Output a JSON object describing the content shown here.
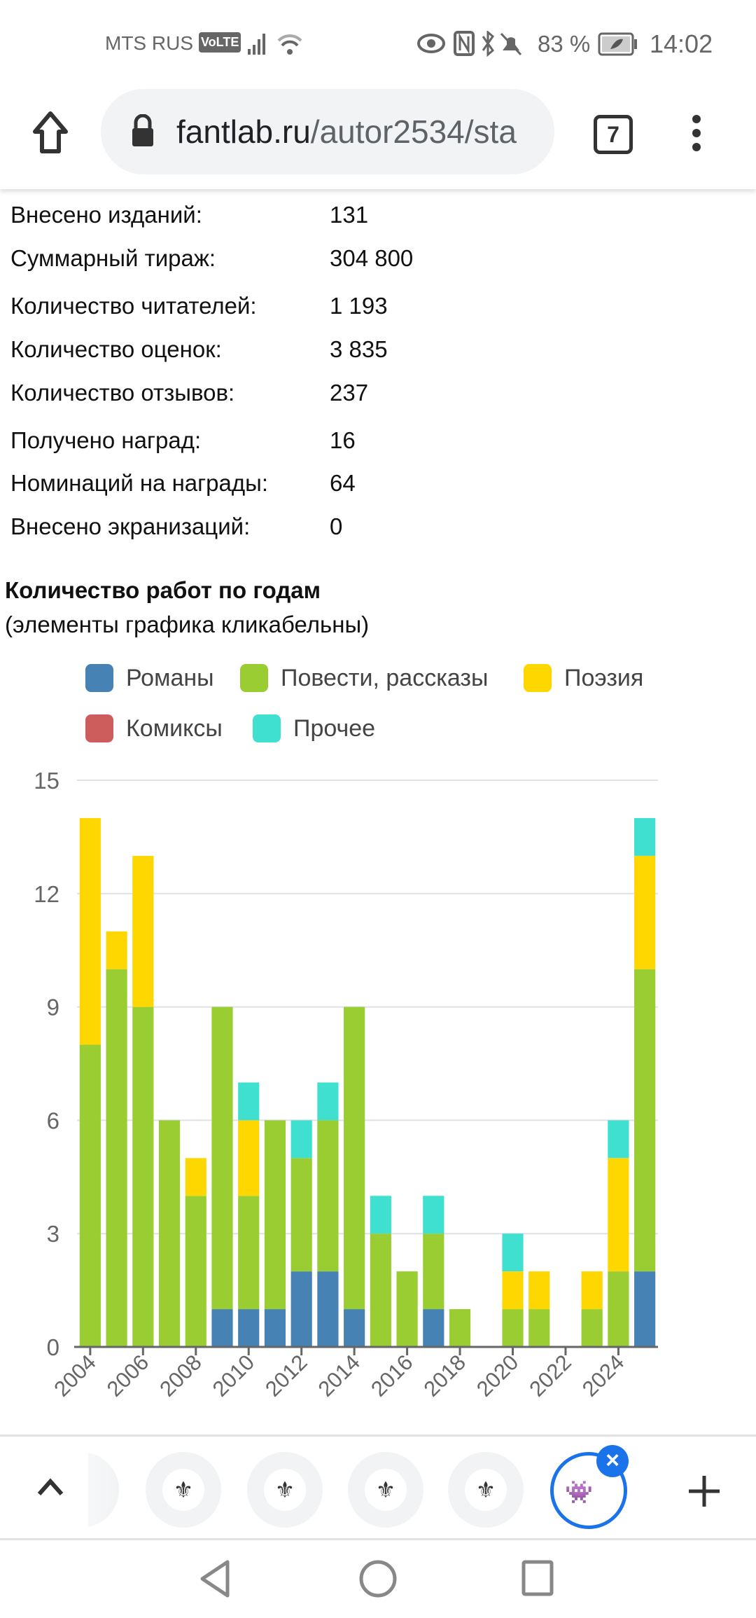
{
  "status_bar": {
    "carrier": "MTS RUS",
    "volte": "VoLTE",
    "battery": "83 %",
    "time": "14:02"
  },
  "browser": {
    "url_host": "fantlab.ru",
    "url_path": "/autor2534/sta",
    "tab_count": "7"
  },
  "stats": [
    {
      "label": "Внесено изданий:",
      "value": "131"
    },
    {
      "label": "Суммарный тираж:",
      "value": "304 800"
    },
    {
      "label": "Количество читателей:",
      "value": "1 193"
    },
    {
      "label": "Количество оценок:",
      "value": "3 835"
    },
    {
      "label": "Количество отзывов:",
      "value": "237"
    },
    {
      "label": "Получено наград:",
      "value": "16"
    },
    {
      "label": "Номинаций на награды:",
      "value": "64"
    },
    {
      "label": "Внесено экранизаций:",
      "value": "0"
    }
  ],
  "chart_section": {
    "title": "Количество работ по годам",
    "subtitle": "(элементы графика кликабельны)"
  },
  "chart_data": {
    "type": "bar",
    "stacked": true,
    "categories": [
      "2004",
      "2005",
      "2006",
      "2007",
      "2008",
      "2009",
      "2010",
      "2011",
      "2012",
      "2013",
      "2014",
      "2015",
      "2016",
      "2017",
      "2018",
      "2019",
      "2020",
      "2021",
      "2022",
      "2023",
      "2024",
      "2025"
    ],
    "tick_labels": [
      "2004",
      "2006",
      "2008",
      "2010",
      "2012",
      "2014",
      "2016",
      "2018",
      "2020",
      "2022",
      "2024"
    ],
    "series": [
      {
        "name": "Романы",
        "color": "#4682b4",
        "values": [
          0,
          0,
          0,
          0,
          0,
          1,
          1,
          1,
          2,
          2,
          1,
          0,
          0,
          1,
          0,
          0,
          0,
          0,
          0,
          0,
          0,
          2
        ]
      },
      {
        "name": "Повести, рассказы",
        "color": "#9acd32",
        "values": [
          8,
          10,
          9,
          6,
          4,
          8,
          3,
          5,
          3,
          4,
          8,
          3,
          2,
          2,
          1,
          0,
          1,
          1,
          0,
          1,
          2,
          8
        ]
      },
      {
        "name": "Поэзия",
        "color": "#ffd700",
        "values": [
          6,
          1,
          4,
          0,
          1,
          0,
          2,
          0,
          0,
          0,
          0,
          0,
          0,
          0,
          0,
          0,
          1,
          1,
          0,
          1,
          3,
          3
        ]
      },
      {
        "name": "Комиксы",
        "color": "#cd5c5c",
        "values": [
          0,
          0,
          0,
          0,
          0,
          0,
          0,
          0,
          0,
          0,
          0,
          0,
          0,
          0,
          0,
          0,
          0,
          0,
          0,
          0,
          0,
          0
        ]
      },
      {
        "name": "Прочее",
        "color": "#40e0d0",
        "values": [
          0,
          0,
          0,
          0,
          0,
          0,
          1,
          0,
          1,
          1,
          0,
          1,
          0,
          1,
          0,
          0,
          1,
          0,
          0,
          0,
          1,
          1
        ]
      }
    ],
    "yticks": [
      "0",
      "3",
      "6",
      "9",
      "12",
      "15"
    ],
    "ylim": [
      0,
      15
    ],
    "grid": true,
    "legend": "top"
  }
}
